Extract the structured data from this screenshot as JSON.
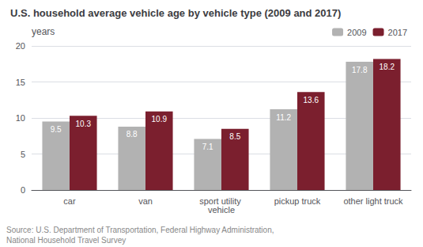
{
  "chart_data": {
    "type": "bar",
    "title": "U.S. household average vehicle age by vehicle type (2009 and 2017)",
    "ylabel": "years",
    "categories": [
      "car",
      "van",
      "sport utility vehicle",
      "pickup truck",
      "other light truck"
    ],
    "series": [
      {
        "name": "2009",
        "color": "#b2b2b2",
        "values": [
          9.5,
          8.8,
          7.1,
          11.2,
          17.8
        ]
      },
      {
        "name": "2017",
        "color": "#7b1f2e",
        "values": [
          10.3,
          10.9,
          8.5,
          13.6,
          18.2
        ]
      }
    ],
    "ylim": [
      0,
      20
    ],
    "yticks": [
      0,
      5,
      10,
      15,
      20
    ],
    "grid": true,
    "legend": "upper right",
    "data_labels": true,
    "annotations": [
      "Source: U.S. Department of Transportation, Federal Highway Administration, ",
      "National Household Travel Survey"
    ]
  }
}
